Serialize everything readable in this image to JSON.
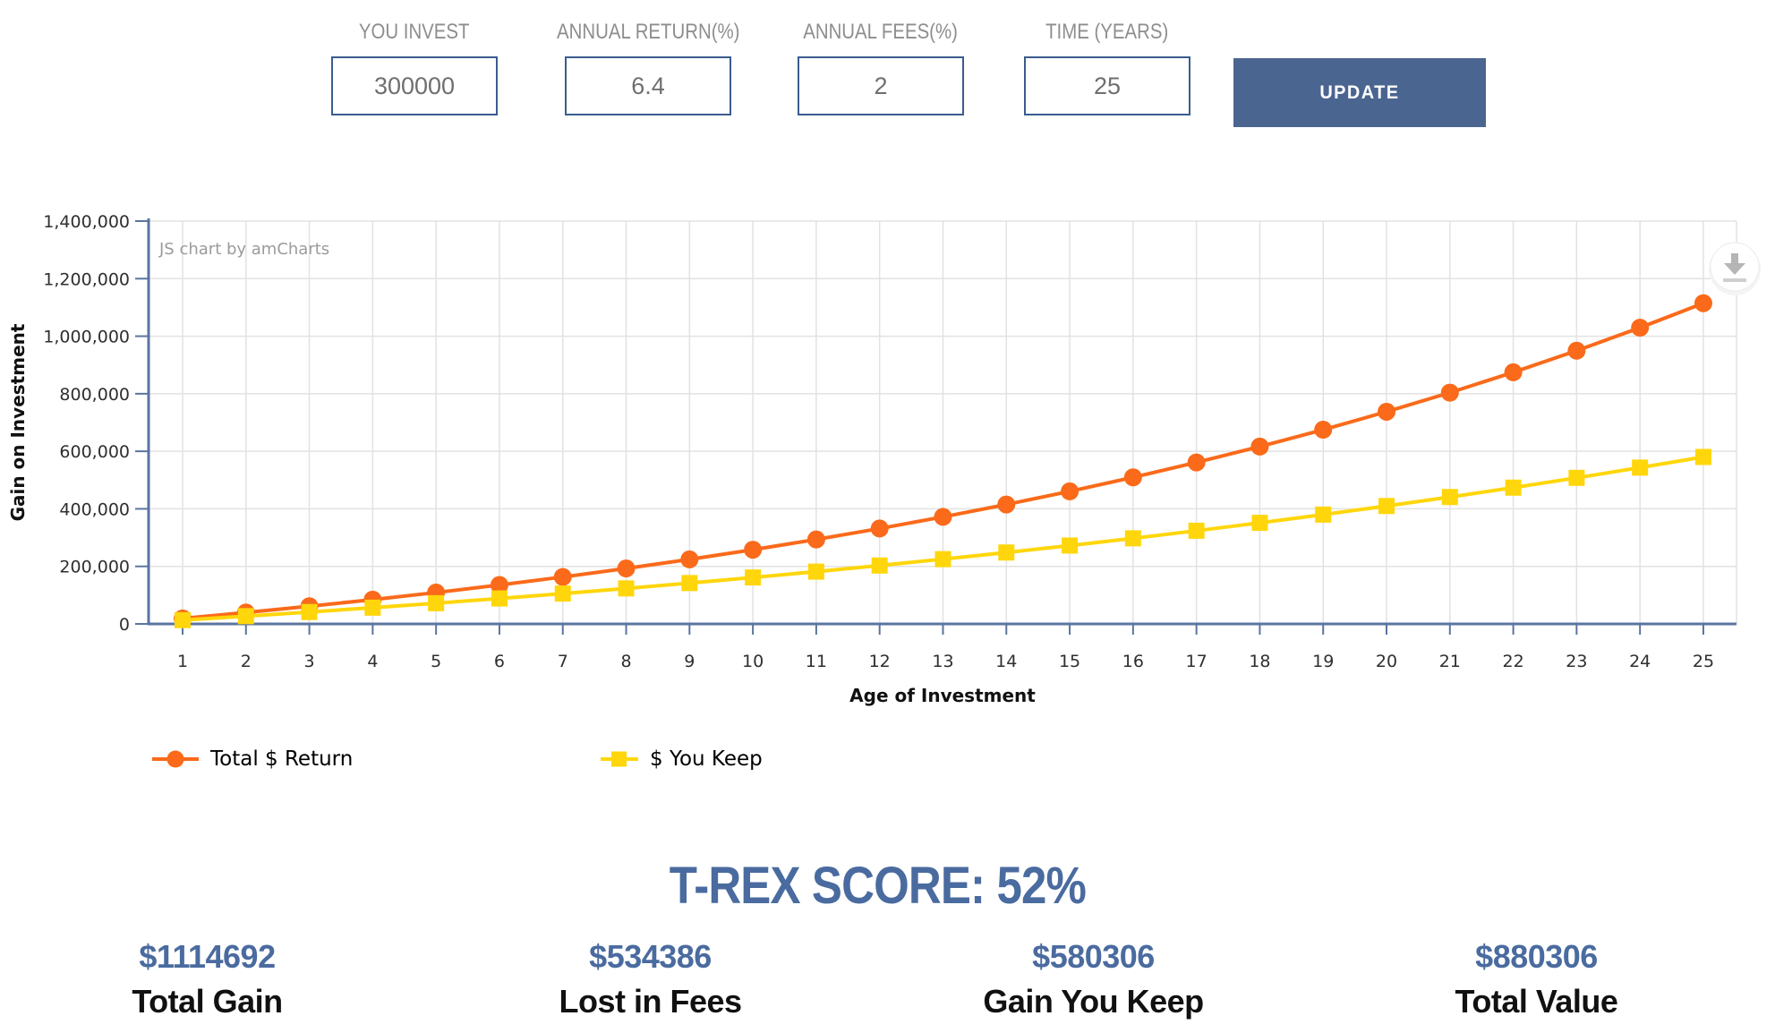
{
  "form": {
    "fields": [
      {
        "label": "YOU INVEST",
        "value": "300000"
      },
      {
        "label": "ANNUAL RETURN(%)",
        "value": "6.4"
      },
      {
        "label": "ANNUAL FEES(%)",
        "value": "2"
      },
      {
        "label": "TIME (YEARS)",
        "value": "25"
      }
    ],
    "update_label": "UPDATE"
  },
  "chart_data": {
    "type": "line",
    "watermark": "JS chart by amCharts",
    "xlabel": "Age of Investment",
    "ylabel": "Gain on Investment",
    "categories": [
      1,
      2,
      3,
      4,
      5,
      6,
      7,
      8,
      9,
      10,
      11,
      12,
      13,
      14,
      15,
      16,
      17,
      18,
      19,
      20,
      21,
      22,
      23,
      24,
      25
    ],
    "series": [
      {
        "name": "Total $ Return",
        "marker": "circle",
        "color": "#fa6a1a",
        "values": [
          19200,
          39629,
          61365,
          84492,
          109100,
          135282,
          163140,
          192781,
          224319,
          257876,
          293580,
          331569,
          371989,
          414997,
          460756,
          509445,
          561249,
          616369,
          675017,
          737418,
          803813,
          874457,
          949622,
          1029598,
          1114692
        ]
      },
      {
        "name": "$ You Keep",
        "marker": "square",
        "color": "#ffd60b",
        "values": [
          13200,
          26981,
          41368,
          56388,
          72069,
          88440,
          105531,
          123375,
          142003,
          161451,
          181755,
          202952,
          225082,
          248186,
          272306,
          297487,
          323777,
          351223,
          379877,
          409791,
          441022,
          473627,
          507667,
          543204,
          580306
        ]
      }
    ],
    "ylim": [
      0,
      1400000
    ],
    "ytick_step": 200000,
    "grid": true,
    "legend_position": "bottom",
    "axis_color": "#5b74a0",
    "grid_color": "#e2e2e2",
    "tick_label_color": "#2f2f2f",
    "watermark_color": "#9b9b9b"
  },
  "export_menu": {
    "icon": "download-icon",
    "icon_color": "#b5b5b5"
  },
  "score": {
    "heading": "T-REX SCORE: 52%"
  },
  "stats": [
    {
      "value": "$1114692",
      "label": "Total Gain"
    },
    {
      "value": "$534386",
      "label": "Lost in Fees"
    },
    {
      "value": "$580306",
      "label": "Gain You Keep"
    },
    {
      "value": "$880306",
      "label": "Total Value"
    }
  ],
  "colors": {
    "accent_blue": "#4a6b9f",
    "form_border": "#3a5c8e",
    "button_bg": "#4a6590",
    "label_gray": "#8e8e8e",
    "input_text": "#6f6f6f"
  }
}
